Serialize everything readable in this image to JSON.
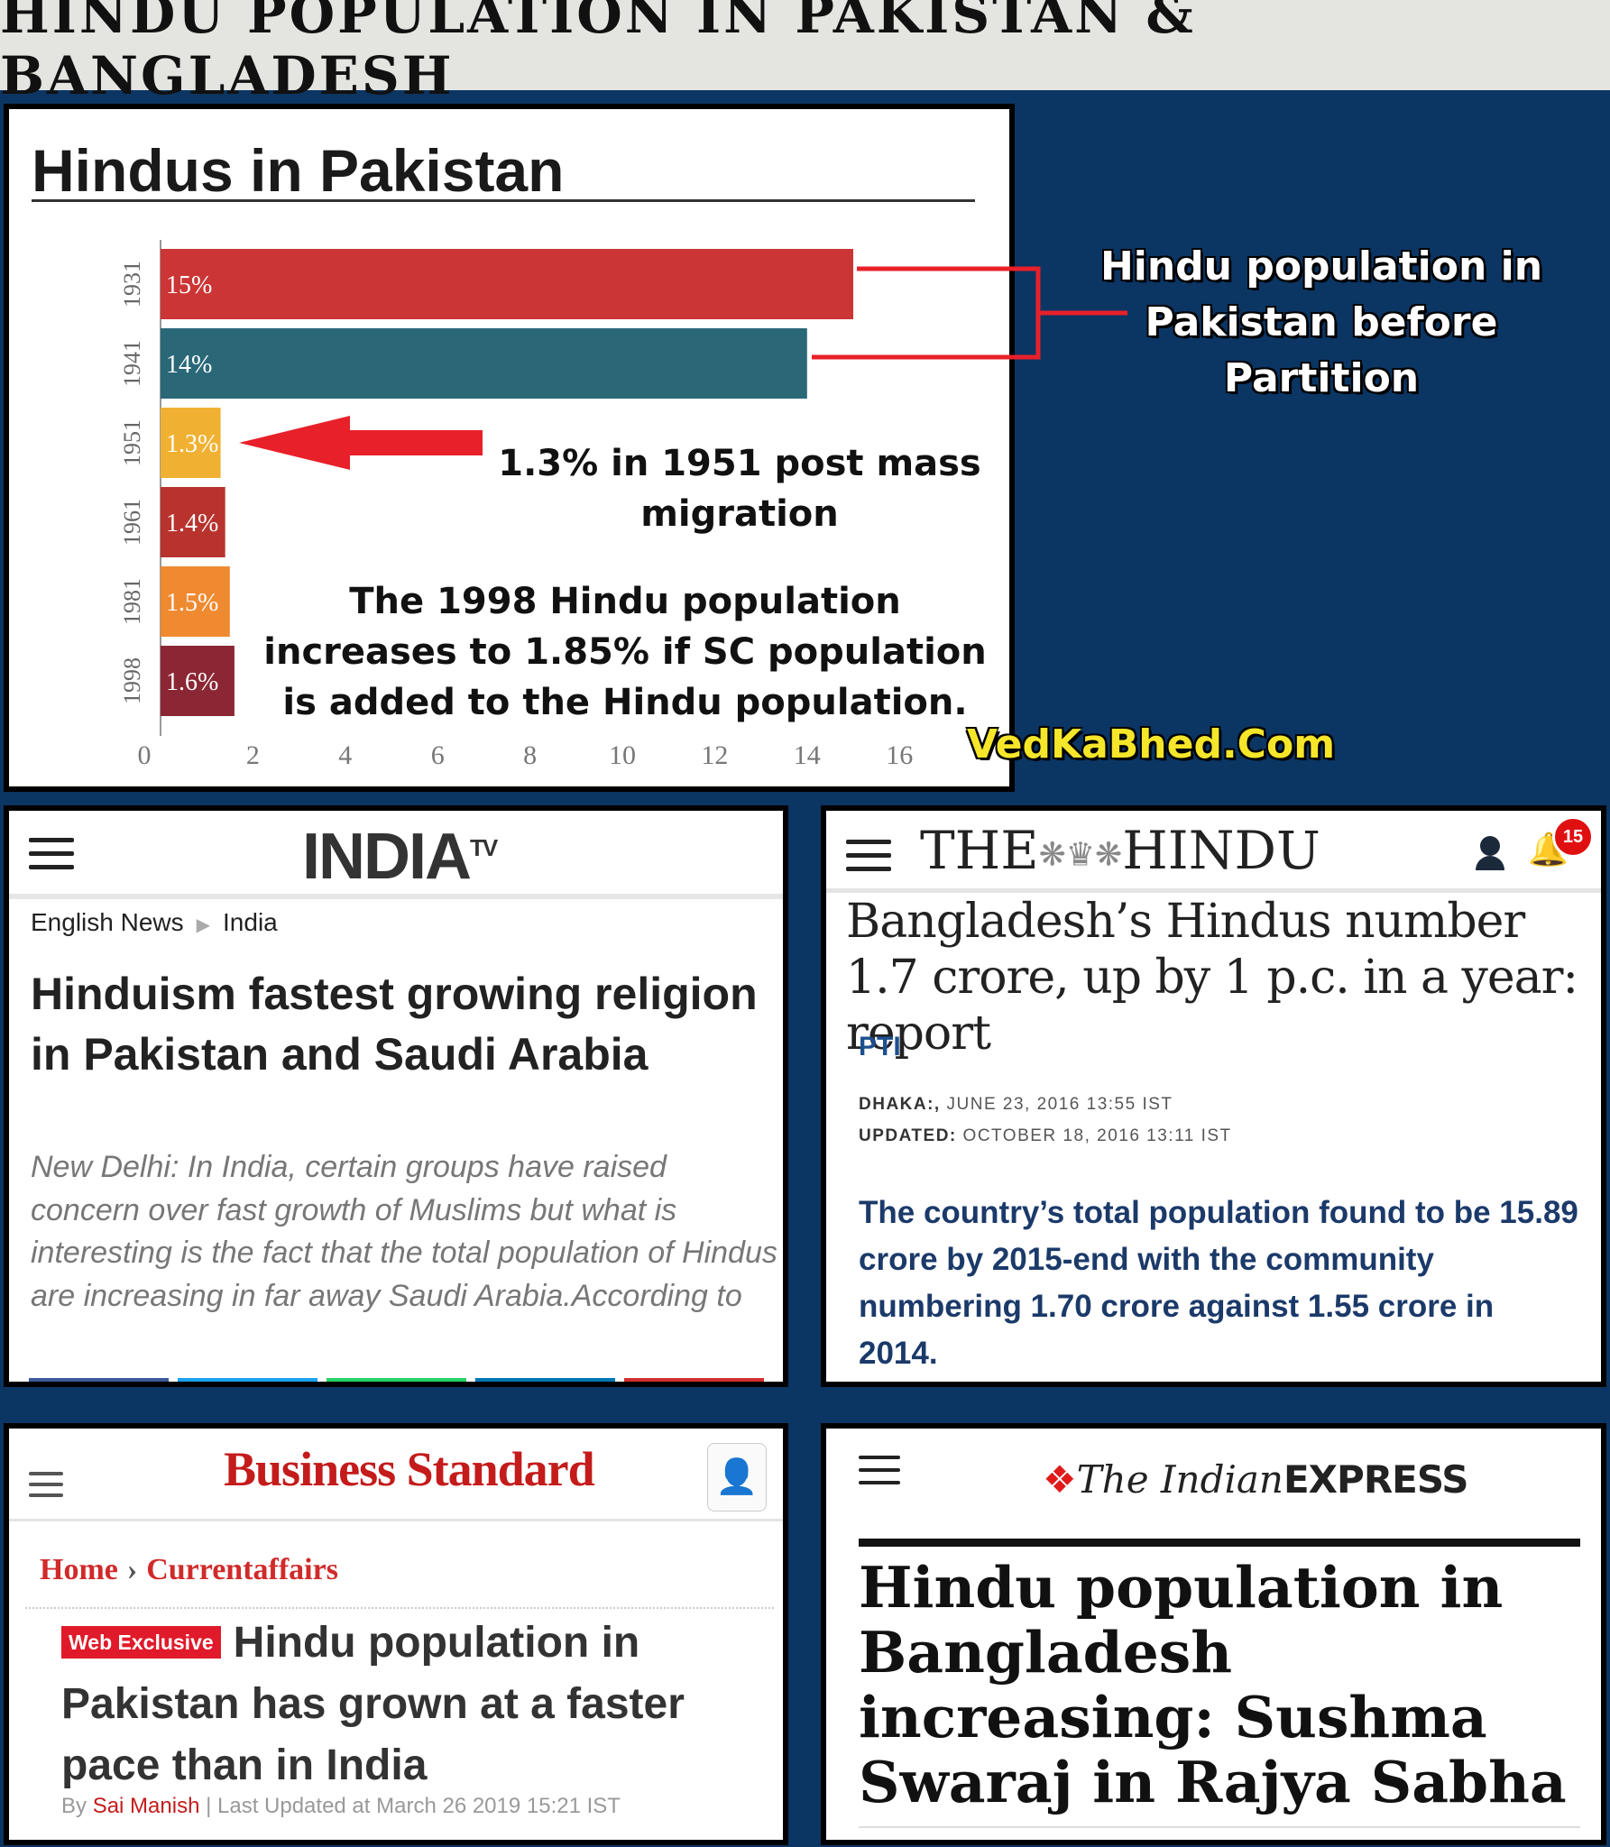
{
  "banner": {
    "title": "HINDU POPULATION IN PAKISTAN & BANGLADESH"
  },
  "chart_data": {
    "type": "bar",
    "orientation": "horizontal",
    "title": "Hindus in Pakistan",
    "categories": [
      "1931",
      "1941",
      "1951",
      "1961",
      "1981",
      "1998"
    ],
    "values": [
      15,
      14,
      1.3,
      1.4,
      1.5,
      1.6
    ],
    "value_labels": [
      "15%",
      "14%",
      "1.3%",
      "1.4%",
      "1.5%",
      "1.6%"
    ],
    "bar_colors": [
      "#cc3535",
      "#2a6878",
      "#f0b132",
      "#b8332e",
      "#ef8a31",
      "#8b2734"
    ],
    "xlim": [
      0,
      17
    ],
    "xticks": [
      0,
      2,
      4,
      6,
      8,
      10,
      12,
      14,
      16
    ],
    "grid": false
  },
  "annotations": {
    "arrow_note": "1.3% in 1951 post mass migration",
    "note_1998": "The 1998 Hindu population increases to 1.85% if SC population is added to the Hindu population.",
    "side_note": "Hindu population in Pakistan before Partition",
    "watermark": "VedKaBhed.Com"
  },
  "indiatv": {
    "logo": "INDIA",
    "logo_sup": "TV",
    "breadcrumb": [
      "English News",
      "India"
    ],
    "headline": "Hinduism fastest growing religion in Pakistan and Saudi Arabia",
    "summary": "New Delhi: In India, certain groups have raised concern over fast growth of Muslims but what is interesting is the fact that the total population of Hindus are increasing in far away Saudi Arabia.According to",
    "share_colors": [
      "#3b5998",
      "#1da1f2",
      "#25d366",
      "#0077b5",
      "#d32f2f"
    ]
  },
  "thehindu": {
    "logo_left": "THE",
    "logo_right": "HINDU",
    "notification_count": "15",
    "headline": "Bangladesh’s Hindus number 1.7 crore, up by 1 p.c. in a year: report",
    "source": "PTI",
    "dateline_label": "DHAKA:,",
    "dateline": "JUNE 23, 2016 13:55 IST",
    "updated_label": "UPDATED:",
    "updated": "OCTOBER 18, 2016 13:11 IST",
    "body": "The country’s total population found to be 15.89 crore by 2015-end with the community numbering 1.70 crore against 1.55 crore in 2014."
  },
  "bizstd": {
    "logo": "Business Standard",
    "breadcrumb_home": "Home",
    "breadcrumb_section": "Currentaffairs",
    "badge": "Web Exclusive",
    "headline": "Hindu population in Pakistan has grown at a faster pace than in India",
    "by": "By",
    "author": "Sai Manish",
    "updated": "| Last Updated at March 26 2019 15:21 IST"
  },
  "indianexp": {
    "logo_the_indian": "The Indian",
    "logo_express": "EXPRESS",
    "headline": "Hindu population in Bangladesh increasing: Sushma Swaraj in Rajya Sabha"
  }
}
